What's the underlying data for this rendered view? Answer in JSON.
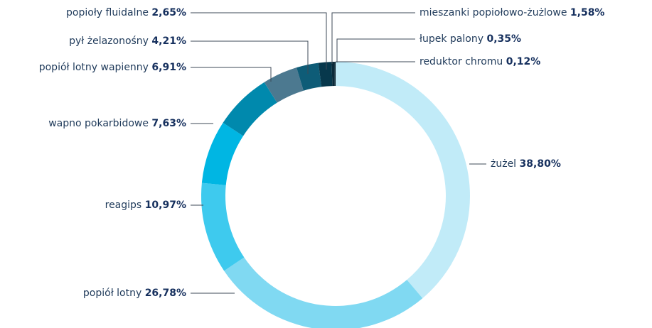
{
  "chart_data": {
    "type": "donut",
    "categories": [
      "żużel",
      "popiół lotny",
      "reagips",
      "wapno pokarbidowe",
      "popiół lotny wapienny",
      "pył żelazonośny",
      "popioły fluidalne",
      "mieszanki popiołowo-żużlowe",
      "łupek palony",
      "reduktor chromu"
    ],
    "values": [
      38.8,
      26.78,
      10.97,
      7.63,
      6.91,
      4.21,
      2.65,
      1.58,
      0.35,
      0.12
    ],
    "value_labels": [
      "38,80%",
      "26,78%",
      "10,97%",
      "7,63%",
      "6,91%",
      "4,21%",
      "2,65%",
      "1,58%",
      "0,35%",
      "0,12%"
    ],
    "colors": [
      "#c1ebf8",
      "#80d9f2",
      "#3ecaee",
      "#00b6e3",
      "#0089ad",
      "#4c7990",
      "#0e5c77",
      "#07384c",
      "#0a2a3a",
      "#061c28"
    ]
  }
}
